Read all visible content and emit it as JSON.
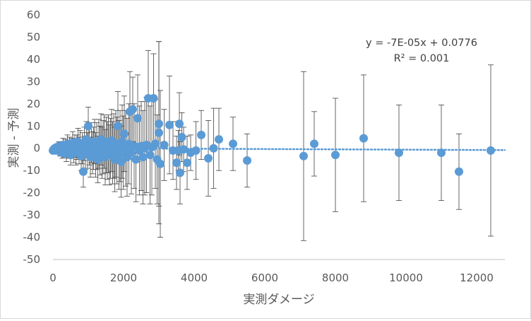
{
  "chart_data": {
    "type": "scatter",
    "title": "",
    "xlabel": "実測ダメージ",
    "ylabel": "実測 - 予測",
    "xlim": [
      0,
      12800
    ],
    "ylim": [
      -50,
      60
    ],
    "x_ticks": [
      0,
      2000,
      4000,
      6000,
      8000,
      10000,
      12000
    ],
    "y_ticks": [
      60,
      50,
      40,
      30,
      20,
      10,
      0,
      -10,
      -20,
      -30,
      -40,
      -50
    ],
    "grid": false,
    "legend": "none",
    "colors": {
      "points": "#5b9bd5",
      "trendline": "#5b9bd5",
      "error_bars": "#404040",
      "axis": "#bfbfbf"
    },
    "trendline": {
      "type": "linear",
      "slope": -7e-05,
      "intercept": 0.0776,
      "equation_label": "y = -7E-05x + 0.0776",
      "r2_label": "R² = 0.001"
    },
    "series": [
      {
        "points": [
          {
            "x": 0,
            "y": -1,
            "err": 1
          },
          {
            "x": 20,
            "y": -0.5,
            "err": 1
          },
          {
            "x": 50,
            "y": 0,
            "err": 1
          },
          {
            "x": 80,
            "y": -1,
            "err": 1.5
          },
          {
            "x": 110,
            "y": 0.5,
            "err": 1.5
          },
          {
            "x": 140,
            "y": -0.5,
            "err": 2
          },
          {
            "x": 170,
            "y": 1,
            "err": 2
          },
          {
            "x": 200,
            "y": -1.5,
            "err": 2
          },
          {
            "x": 230,
            "y": 0,
            "err": 2.5
          },
          {
            "x": 260,
            "y": -2,
            "err": 2.5
          },
          {
            "x": 290,
            "y": 1.5,
            "err": 3
          },
          {
            "x": 320,
            "y": -1,
            "err": 3
          },
          {
            "x": 350,
            "y": 0.5,
            "err": 3.5
          },
          {
            "x": 380,
            "y": -2.5,
            "err": 3.5
          },
          {
            "x": 410,
            "y": 2,
            "err": 4
          },
          {
            "x": 440,
            "y": -0.5,
            "err": 4
          },
          {
            "x": 470,
            "y": 1,
            "err": 4
          },
          {
            "x": 500,
            "y": -3,
            "err": 4.5
          },
          {
            "x": 530,
            "y": 0,
            "err": 4.5
          },
          {
            "x": 560,
            "y": 2.5,
            "err": 5
          },
          {
            "x": 590,
            "y": -1.5,
            "err": 5
          },
          {
            "x": 620,
            "y": 1,
            "err": 5
          },
          {
            "x": 650,
            "y": -2,
            "err": 5.5
          },
          {
            "x": 680,
            "y": 0.5,
            "err": 5.5
          },
          {
            "x": 710,
            "y": 3,
            "err": 6
          },
          {
            "x": 740,
            "y": -1,
            "err": 6
          },
          {
            "x": 770,
            "y": 1.5,
            "err": 6.5
          },
          {
            "x": 800,
            "y": -3.5,
            "err": 6.5
          },
          {
            "x": 830,
            "y": 0,
            "err": 7
          },
          {
            "x": 860,
            "y": -10.5,
            "err": 7
          },
          {
            "x": 890,
            "y": 2,
            "err": 7.5
          },
          {
            "x": 920,
            "y": -2,
            "err": 7.5
          },
          {
            "x": 950,
            "y": 4,
            "err": 8
          },
          {
            "x": 980,
            "y": -1,
            "err": 8
          },
          {
            "x": 1000,
            "y": 10,
            "err": 8.5
          },
          {
            "x": 1030,
            "y": 1,
            "err": 8.5
          },
          {
            "x": 1060,
            "y": -4,
            "err": 9
          },
          {
            "x": 1090,
            "y": 2.5,
            "err": 9
          },
          {
            "x": 1120,
            "y": -2,
            "err": 9.5
          },
          {
            "x": 1150,
            "y": 0,
            "err": 9.5
          },
          {
            "x": 1180,
            "y": 3,
            "err": 10
          },
          {
            "x": 1210,
            "y": -3,
            "err": 10
          },
          {
            "x": 1240,
            "y": 1,
            "err": 10.5
          },
          {
            "x": 1270,
            "y": -5,
            "err": 10.5
          },
          {
            "x": 1300,
            "y": 2,
            "err": 11
          },
          {
            "x": 1330,
            "y": -1,
            "err": 11
          },
          {
            "x": 1360,
            "y": 4,
            "err": 11.5
          },
          {
            "x": 1390,
            "y": -2,
            "err": 11.5
          },
          {
            "x": 1420,
            "y": 0.5,
            "err": 12
          },
          {
            "x": 1450,
            "y": 3,
            "err": 12
          },
          {
            "x": 1480,
            "y": -4,
            "err": 12.5
          },
          {
            "x": 1510,
            "y": 1.5,
            "err": 12.5
          },
          {
            "x": 1540,
            "y": -1,
            "err": 13
          },
          {
            "x": 1570,
            "y": 2,
            "err": 13
          },
          {
            "x": 1600,
            "y": -3,
            "err": 13.5
          },
          {
            "x": 1630,
            "y": 0,
            "err": 13.5
          },
          {
            "x": 1660,
            "y": 3.5,
            "err": 14
          },
          {
            "x": 1690,
            "y": -2,
            "err": 14
          },
          {
            "x": 1720,
            "y": 1,
            "err": 14.5
          },
          {
            "x": 1750,
            "y": -5,
            "err": 14.5
          },
          {
            "x": 1780,
            "y": 2,
            "err": 15
          },
          {
            "x": 1810,
            "y": -1,
            "err": 15
          },
          {
            "x": 1840,
            "y": 10,
            "err": 15.5
          },
          {
            "x": 1870,
            "y": -3,
            "err": 15.5
          },
          {
            "x": 1900,
            "y": 1,
            "err": 16
          },
          {
            "x": 1930,
            "y": -6,
            "err": 16
          },
          {
            "x": 1960,
            "y": 3,
            "err": 16.5
          },
          {
            "x": 1990,
            "y": -2,
            "err": 16.5
          },
          {
            "x": 2020,
            "y": 6.5,
            "err": 17
          },
          {
            "x": 2060,
            "y": 0,
            "err": 17
          },
          {
            "x": 2100,
            "y": -4,
            "err": 17.5
          },
          {
            "x": 2150,
            "y": 2,
            "err": 18
          },
          {
            "x": 2180,
            "y": 16.5,
            "err": 18
          },
          {
            "x": 2220,
            "y": -2,
            "err": 18.5
          },
          {
            "x": 2260,
            "y": 17.5,
            "err": 14.5
          },
          {
            "x": 2300,
            "y": 1,
            "err": 19
          },
          {
            "x": 2350,
            "y": -5,
            "err": 19
          },
          {
            "x": 2400,
            "y": 13.5,
            "err": 19.5
          },
          {
            "x": 2450,
            "y": -1,
            "err": 20
          },
          {
            "x": 2500,
            "y": 1,
            "err": 20
          },
          {
            "x": 2550,
            "y": -4,
            "err": 21
          },
          {
            "x": 2600,
            "y": 0,
            "err": 21
          },
          {
            "x": 2650,
            "y": 1.5,
            "err": 21.5
          },
          {
            "x": 2700,
            "y": 22.5,
            "err": 21.5
          },
          {
            "x": 2750,
            "y": -3,
            "err": 22
          },
          {
            "x": 2800,
            "y": 0.5,
            "err": 21.5
          },
          {
            "x": 2850,
            "y": 22.5,
            "err": 20
          },
          {
            "x": 2900,
            "y": 2,
            "err": 20
          },
          {
            "x": 2950,
            "y": -5,
            "err": 20
          },
          {
            "x": 3000,
            "y": 11,
            "err": 37
          },
          {
            "x": 3000,
            "y": 7,
            "err": 41
          },
          {
            "x": 3040,
            "y": -7,
            "err": 33
          },
          {
            "x": 3150,
            "y": 1.5,
            "err": 16
          },
          {
            "x": 3300,
            "y": 10.5,
            "err": 22
          },
          {
            "x": 3400,
            "y": -1,
            "err": 13
          },
          {
            "x": 3500,
            "y": -6.5,
            "err": 12
          },
          {
            "x": 3550,
            "y": -1,
            "err": 9
          },
          {
            "x": 3580,
            "y": 11,
            "err": 14
          },
          {
            "x": 3600,
            "y": -11,
            "err": 14
          },
          {
            "x": 3650,
            "y": 5,
            "err": 11
          },
          {
            "x": 3700,
            "y": -0.5,
            "err": 10
          },
          {
            "x": 3800,
            "y": -6.5,
            "err": 12
          },
          {
            "x": 3900,
            "y": -2,
            "err": 8
          },
          {
            "x": 4050,
            "y": -1,
            "err": 13
          },
          {
            "x": 4200,
            "y": 6,
            "err": 11
          },
          {
            "x": 4400,
            "y": -4.5,
            "err": 17
          },
          {
            "x": 4550,
            "y": 0,
            "err": 18
          },
          {
            "x": 4700,
            "y": 4,
            "err": 14
          },
          {
            "x": 5100,
            "y": 2,
            "err": 12
          },
          {
            "x": 5500,
            "y": -5.5,
            "err": 12
          },
          {
            "x": 7100,
            "y": -3.5,
            "err": 38
          },
          {
            "x": 7400,
            "y": 2,
            "err": 14.5
          },
          {
            "x": 8000,
            "y": -3,
            "err": 25.5
          },
          {
            "x": 8800,
            "y": 4.5,
            "err": 28.5
          },
          {
            "x": 9800,
            "y": -2,
            "err": 21.5
          },
          {
            "x": 11000,
            "y": -2,
            "err": 21.5
          },
          {
            "x": 11500,
            "y": -10.5,
            "err": 17
          },
          {
            "x": 12400,
            "y": -1,
            "err": 38.5
          }
        ]
      }
    ]
  }
}
